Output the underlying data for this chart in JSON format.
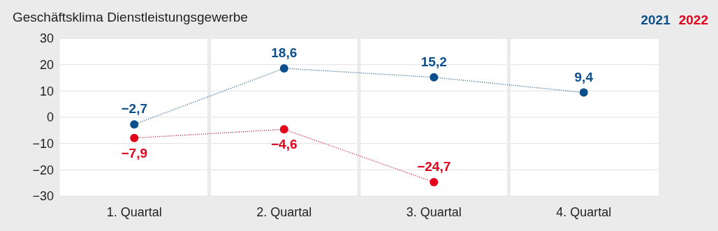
{
  "chart_data": {
    "type": "line",
    "title": "Geschäftsklima Dienstleistungsgewerbe",
    "categories": [
      "1. Quartal",
      "2. Quartal",
      "3. Quartal",
      "4. Quartal"
    ],
    "series": [
      {
        "name": "2021",
        "color": "#0b4f8c",
        "values": [
          -2.7,
          18.6,
          15.2,
          9.4
        ],
        "value_labels": [
          "−2,7",
          "18,6",
          "15,2",
          "9,4"
        ]
      },
      {
        "name": "2022",
        "color": "#e3001b",
        "values": [
          -7.9,
          -4.6,
          -24.7,
          null
        ],
        "value_labels": [
          "−7,9",
          "−4,6",
          "−24,7",
          null
        ]
      }
    ],
    "ylim": [
      -30,
      30
    ],
    "yticks": [
      -30,
      -20,
      -10,
      0,
      10,
      20,
      30
    ],
    "grid": true,
    "legend": "top right",
    "marker": "circle",
    "line_style": "dotted"
  }
}
